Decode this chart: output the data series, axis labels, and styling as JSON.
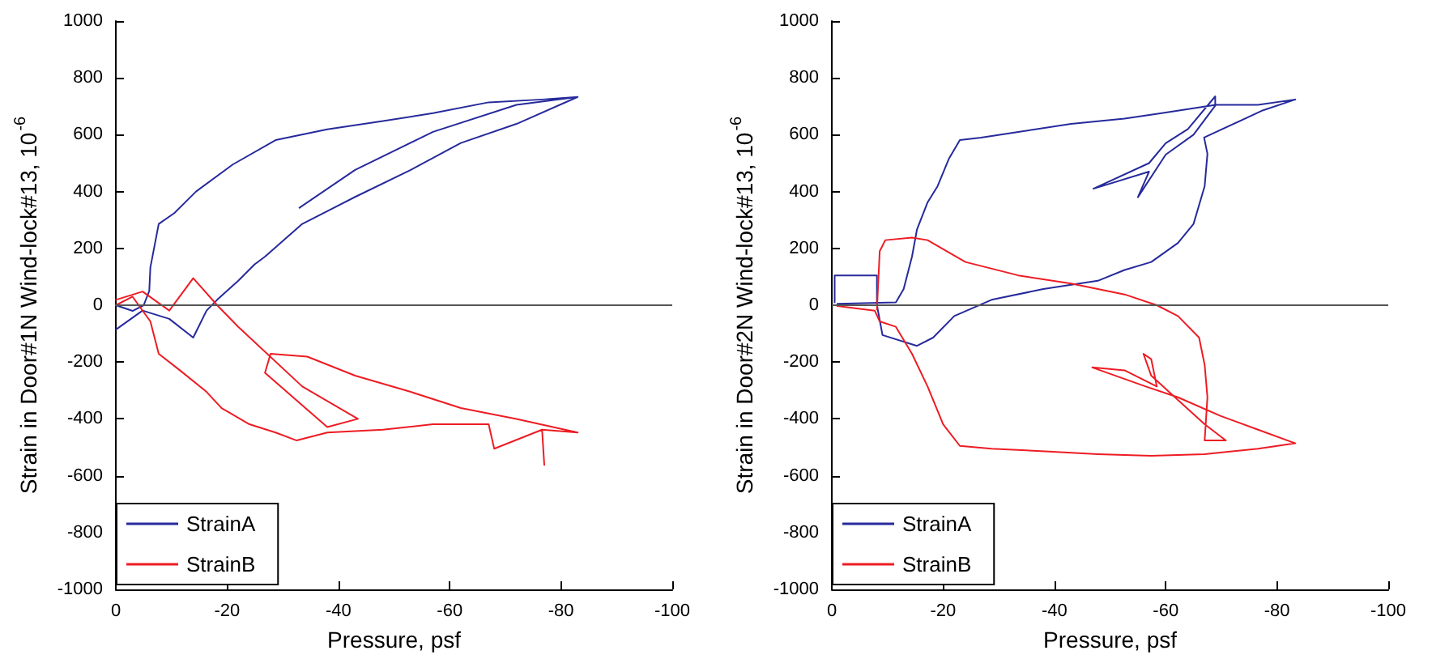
{
  "chart_data": [
    {
      "type": "line",
      "xlabel": "Pressure, psf",
      "ylabel": "Strain in Door#1N Wind-lock#13, 10$^{-6}$",
      "xlim": [
        0,
        -100
      ],
      "xticks": [
        0,
        -20,
        -40,
        -60,
        -80,
        -100
      ],
      "ylim": [
        -1000,
        1000
      ],
      "yticks": [
        -1000,
        -800,
        -600,
        -400,
        -200,
        0,
        200,
        400,
        600,
        800,
        1000
      ],
      "legend": "bottom left",
      "ref_lines": [
        {
          "axis": "y",
          "value": 0,
          "color": "#555555"
        }
      ],
      "series": [
        {
          "name": "StrainA",
          "color": "#262a9b",
          "x": [
            0,
            -3,
            -5,
            -6,
            -6.2,
            -7.7,
            -10.5,
            -14.4,
            -21,
            -28.7,
            -38,
            -48,
            -57,
            -67,
            -76.6,
            -83,
            -72,
            -57,
            -43,
            -33,
            -43,
            -57,
            -72,
            -83,
            -72,
            -62,
            -53,
            -43,
            -33.5,
            -26.8,
            -24.9,
            -22,
            -18.2,
            -16.3,
            -13.9,
            -9.6,
            -4.8,
            0
          ],
          "values": [
            0,
            -20,
            0,
            50,
            133,
            286,
            324,
            400,
            495,
            581,
            619,
            648,
            676,
            714,
            724,
            733,
            705,
            610,
            476,
            343,
            476,
            610,
            705,
            733,
            638,
            571,
            476,
            381,
            286,
            171,
            143,
            86,
            19,
            -19,
            -114,
            -48,
            -19,
            -86
          ]
        },
        {
          "name": "StrainB",
          "color": "#ed1c24",
          "x": [
            0,
            -4.8,
            -9.6,
            -13.9,
            -18.2,
            -22,
            -33.5,
            -43.5,
            -38,
            -26.8,
            -27.8,
            -34.4,
            -43,
            -53,
            -62,
            -72,
            -83,
            -76.6,
            -77,
            -76.6,
            -68,
            -67,
            -57,
            -48,
            -38,
            -32.5,
            -28.7,
            -24,
            -19,
            -16.3,
            -11.5,
            -7.7,
            -6.2,
            -3,
            0
          ],
          "values": [
            19,
            48,
            -19,
            95,
            0,
            -76,
            -286,
            -400,
            -429,
            -238,
            -171,
            -181,
            -248,
            -305,
            -362,
            -400,
            -448,
            -438,
            -562,
            -438,
            -505,
            -419,
            -419,
            -438,
            -448,
            -476,
            -448,
            -419,
            -362,
            -305,
            -229,
            -171,
            -57,
            30,
            0
          ]
        }
      ]
    },
    {
      "type": "line",
      "xlabel": "Pressure, psf",
      "ylabel": "Strain in Door#2N Wind-lock#13, 10$^{-6}$",
      "xlim": [
        0,
        -100
      ],
      "xticks": [
        0,
        -20,
        -40,
        -60,
        -80,
        -100
      ],
      "ylim": [
        -1000,
        1000
      ],
      "yticks": [
        -1000,
        -800,
        -600,
        -400,
        -200,
        0,
        200,
        400,
        600,
        800,
        1000
      ],
      "legend": "bottom left",
      "ref_lines": [
        {
          "axis": "y",
          "value": 0,
          "color": "#555555"
        }
      ],
      "series": [
        {
          "name": "StrainA",
          "color": "#262a9b",
          "x": [
            -0.5,
            -0.5,
            -8.1,
            -8.1,
            -9.1,
            -15.3,
            -18.2,
            -22,
            -28.7,
            -38,
            -47.8,
            -52.6,
            -57.4,
            -62.2,
            -65,
            -67,
            -67.5,
            -66.9,
            -77.5,
            -83.3,
            -76.6,
            -68.9,
            -68.9,
            -64,
            -60,
            -57,
            -47,
            -57,
            -55,
            -60,
            -65,
            -69,
            -59.3,
            -52.6,
            -43,
            -33.5,
            -26.8,
            -23,
            -21,
            -19,
            -17.2,
            -15.3,
            -14.4,
            -12.9,
            -11.5,
            -1
          ],
          "values": [
            10,
            105,
            105,
            0,
            -105,
            -143,
            -114,
            -38,
            19,
            57,
            86,
            124,
            152,
            219,
            286,
            419,
            533,
            590,
            686,
            724,
            705,
            705,
            735,
            620,
            570,
            500,
            410,
            470,
            380,
            530,
            600,
            705,
            676,
            657,
            638,
            610,
            590,
            581,
            514,
            419,
            362,
            267,
            171,
            57,
            10,
            5
          ]
        },
        {
          "name": "StrainB",
          "color": "#ed1c24",
          "x": [
            -1,
            -7.7,
            -8.6,
            -11.5,
            -14.4,
            -17.2,
            -20,
            -23,
            -28.7,
            -38.3,
            -47.8,
            -57.4,
            -67,
            -76.6,
            -83.3,
            -76.6,
            -69.9,
            -62.2,
            -56.4,
            -46.8,
            -52.6,
            -58.4,
            -57.4,
            -56,
            -57.4,
            -67,
            -70.8,
            -67,
            -67.5,
            -67,
            -66,
            -62.2,
            -58.4,
            -52.6,
            -43,
            -33.5,
            -24,
            -17.2,
            -14.4,
            -9.6,
            -8.6,
            -8.1
          ],
          "values": [
            -3,
            -19,
            -57,
            -76,
            -171,
            -286,
            -419,
            -495,
            -505,
            -514,
            -524,
            -530,
            -524,
            -505,
            -486,
            -438,
            -390,
            -324,
            -286,
            -219,
            -229,
            -286,
            -190,
            -171,
            -248,
            -419,
            -476,
            -476,
            -324,
            -210,
            -114,
            -38,
            0,
            38,
            76,
            105,
            152,
            229,
            238,
            229,
            190,
            -15
          ]
        }
      ]
    }
  ]
}
